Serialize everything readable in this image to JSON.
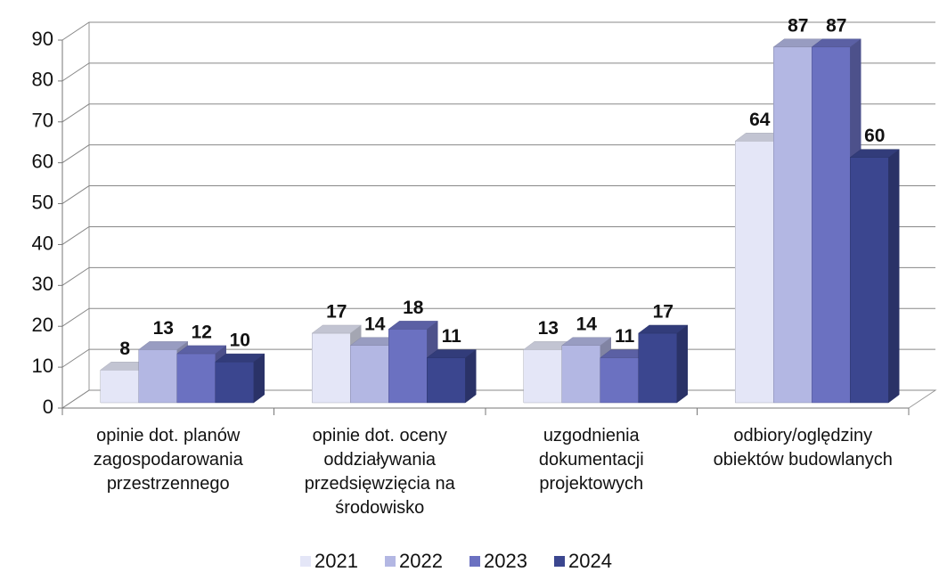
{
  "chart_data": {
    "type": "bar3d",
    "categories": [
      "opinie dot. planów zagospodarowania przestrzennego",
      "opinie dot. oceny oddziaływania przedsięwzięcia na środowisko",
      "uzgodnienia dokumentacji projektowych",
      "odbiory/oględziny obiektów budowlanych"
    ],
    "series": [
      {
        "name": "2021",
        "color": "#e4e6f7",
        "values": [
          8,
          17,
          13,
          64
        ]
      },
      {
        "name": "2022",
        "color": "#b3b7e3",
        "values": [
          13,
          14,
          14,
          87
        ]
      },
      {
        "name": "2023",
        "color": "#6b71c1",
        "values": [
          12,
          18,
          11,
          87
        ]
      },
      {
        "name": "2024",
        "color": "#3b468f",
        "values": [
          10,
          11,
          17,
          60
        ]
      }
    ],
    "ylim": [
      0,
      90
    ],
    "yticks": [
      0,
      10,
      20,
      30,
      40,
      50,
      60,
      70,
      80,
      90
    ],
    "grid": true,
    "legend": "bottom"
  }
}
